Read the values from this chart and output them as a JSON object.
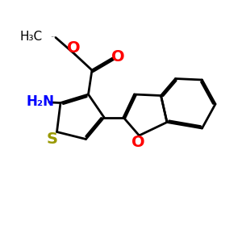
{
  "bg_color": "#ffffff",
  "atom_colors": {
    "S": "#999900",
    "O": "#ff0000",
    "N": "#0000ff",
    "C": "#000000"
  },
  "bond_color": "#000000",
  "bond_width": 2.0,
  "dbo": 0.06,
  "figsize": [
    3.0,
    3.0
  ],
  "dpi": 100,
  "xlim": [
    0,
    10
  ],
  "ylim": [
    0,
    10
  ],
  "font_size_atom": 13,
  "font_size_label": 12
}
